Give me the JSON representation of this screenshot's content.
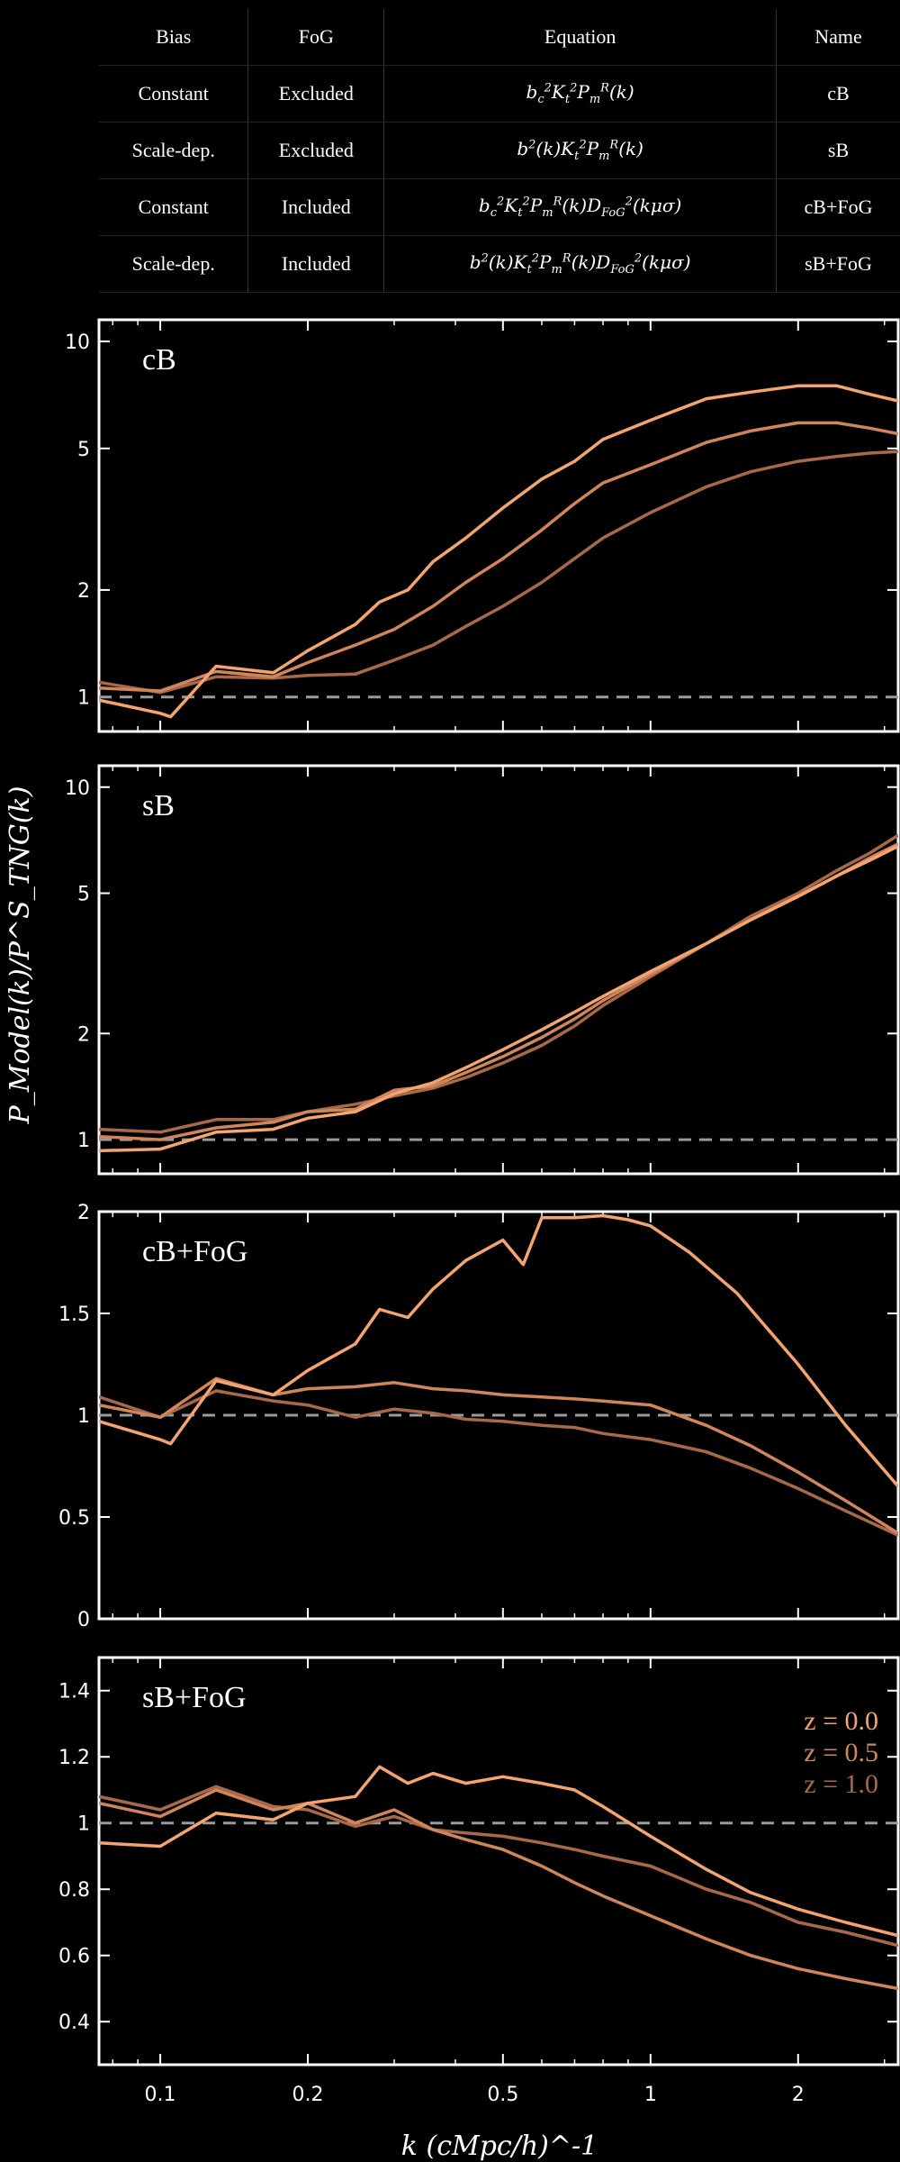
{
  "table": {
    "headers": [
      "Bias",
      "FoG",
      "Equation",
      "Name"
    ],
    "rows": [
      {
        "bias": "Constant",
        "fog": "Excluded",
        "eq_html": "b<sub>c</sub><sup>2</sup>K<sub>t</sub><sup>2</sup>P<sub>m</sub><sup>R</sup>(k)",
        "name": "cB"
      },
      {
        "bias": "Scale-dep.",
        "fog": "Excluded",
        "eq_html": "b<sup>2</sup>(k)K<sub>t</sub><sup>2</sup>P<sub>m</sub><sup>R</sup>(k)",
        "name": "sB"
      },
      {
        "bias": "Constant",
        "fog": "Included",
        "eq_html": "b<sub>c</sub><sup>2</sup>K<sub>t</sub><sup>2</sup>P<sub>m</sub><sup>R</sup>(k)D<sub>FoG</sub><sup>2</sup>(kμσ)",
        "name": "cB+FoG"
      },
      {
        "bias": "Scale-dep.",
        "fog": "Included",
        "eq_html": "b<sup>2</sup>(k)K<sub>t</sub><sup>2</sup>P<sub>m</sub><sup>R</sup>(k)D<sub>FoG</sub><sup>2</sup>(kμσ)",
        "name": "sB+FoG"
      }
    ]
  },
  "y_axis_title": "P_Model(k)/P^S_TNG(k)",
  "x_axis_title": "k (cMpc/h)^-1",
  "colors": {
    "z0.0": "#f4a46e",
    "z0.5": "#d0855b",
    "z1.0": "#a8694a",
    "ref": "#9a9a9a"
  },
  "chart_data": [
    {
      "type": "line",
      "panel_label": "cB",
      "yscale": "log",
      "xscale": "log",
      "xlim": [
        0.075,
        3.2
      ],
      "ylim": [
        0.8,
        11.5
      ],
      "xticks": [
        0.1,
        0.2,
        0.5,
        1,
        2
      ],
      "xticklabels": [
        "0.1",
        "0.2",
        "0.5",
        "1",
        "2"
      ],
      "yticks": [
        1,
        2,
        5,
        10
      ],
      "yticklabels": [
        "1",
        "2",
        "5",
        "10"
      ],
      "reference_line": 1.0,
      "series": [
        {
          "color": "#f4a46e",
          "x": [
            0.075,
            0.1,
            0.105,
            0.13,
            0.17,
            0.2,
            0.25,
            0.28,
            0.32,
            0.36,
            0.42,
            0.5,
            0.6,
            0.7,
            0.8,
            1.0,
            1.3,
            1.6,
            2.0,
            2.4,
            2.8,
            3.2
          ],
          "y": [
            0.98,
            0.9,
            0.88,
            1.22,
            1.17,
            1.35,
            1.6,
            1.85,
            2.0,
            2.4,
            2.8,
            3.4,
            4.1,
            4.6,
            5.3,
            6.0,
            6.9,
            7.2,
            7.5,
            7.5,
            7.1,
            6.8
          ]
        },
        {
          "color": "#d0855b",
          "x": [
            0.075,
            0.1,
            0.13,
            0.17,
            0.2,
            0.25,
            0.3,
            0.36,
            0.42,
            0.5,
            0.6,
            0.7,
            0.8,
            1.0,
            1.3,
            1.6,
            2.0,
            2.4,
            2.8,
            3.2
          ],
          "y": [
            1.06,
            1.04,
            1.18,
            1.14,
            1.25,
            1.4,
            1.55,
            1.8,
            2.1,
            2.45,
            2.95,
            3.5,
            4.0,
            4.5,
            5.2,
            5.6,
            5.9,
            5.9,
            5.7,
            5.5
          ]
        },
        {
          "color": "#a8694a",
          "x": [
            0.075,
            0.1,
            0.13,
            0.17,
            0.2,
            0.25,
            0.3,
            0.36,
            0.42,
            0.5,
            0.6,
            0.7,
            0.8,
            1.0,
            1.3,
            1.6,
            2.0,
            2.4,
            2.8,
            3.2
          ],
          "y": [
            1.1,
            1.03,
            1.14,
            1.13,
            1.15,
            1.16,
            1.27,
            1.4,
            1.58,
            1.8,
            2.1,
            2.45,
            2.8,
            3.3,
            3.9,
            4.3,
            4.6,
            4.75,
            4.85,
            4.9
          ]
        }
      ]
    },
    {
      "type": "line",
      "panel_label": "sB",
      "yscale": "log",
      "xscale": "log",
      "xlim": [
        0.075,
        3.2
      ],
      "ylim": [
        0.8,
        11.5
      ],
      "xticks": [
        0.1,
        0.2,
        0.5,
        1,
        2
      ],
      "xticklabels": [
        "0.1",
        "0.2",
        "0.5",
        "1",
        "2"
      ],
      "yticks": [
        1,
        2,
        5,
        10
      ],
      "yticklabels": [
        "1",
        "2",
        "5",
        "10"
      ],
      "reference_line": 1.0,
      "series": [
        {
          "color": "#f4a46e",
          "x": [
            0.075,
            0.1,
            0.13,
            0.17,
            0.2,
            0.25,
            0.3,
            0.36,
            0.42,
            0.5,
            0.6,
            0.7,
            0.8,
            1.0,
            1.3,
            1.6,
            2.0,
            2.4,
            2.8,
            3.2
          ],
          "y": [
            0.93,
            0.94,
            1.05,
            1.07,
            1.15,
            1.2,
            1.35,
            1.45,
            1.6,
            1.8,
            2.05,
            2.3,
            2.55,
            3.0,
            3.6,
            4.2,
            4.9,
            5.6,
            6.2,
            6.8
          ]
        },
        {
          "color": "#d0855b",
          "x": [
            0.075,
            0.1,
            0.13,
            0.17,
            0.2,
            0.25,
            0.3,
            0.36,
            0.42,
            0.5,
            0.6,
            0.7,
            0.8,
            1.0,
            1.3,
            1.6,
            2.0,
            2.4,
            2.8,
            3.2
          ],
          "y": [
            1.02,
            1.0,
            1.08,
            1.12,
            1.2,
            1.22,
            1.38,
            1.42,
            1.55,
            1.72,
            1.95,
            2.2,
            2.48,
            2.95,
            3.6,
            4.2,
            4.9,
            5.6,
            6.3,
            6.9
          ]
        },
        {
          "color": "#a8694a",
          "x": [
            0.075,
            0.1,
            0.13,
            0.17,
            0.2,
            0.25,
            0.3,
            0.36,
            0.42,
            0.5,
            0.6,
            0.7,
            0.8,
            1.0,
            1.3,
            1.6,
            2.0,
            2.4,
            2.8,
            3.2
          ],
          "y": [
            1.07,
            1.05,
            1.14,
            1.14,
            1.2,
            1.26,
            1.33,
            1.4,
            1.5,
            1.65,
            1.85,
            2.1,
            2.4,
            2.9,
            3.6,
            4.3,
            5.0,
            5.8,
            6.5,
            7.3
          ]
        }
      ]
    },
    {
      "type": "line",
      "panel_label": "cB+FoG",
      "yscale": "linear",
      "xscale": "log",
      "xlim": [
        0.075,
        3.2
      ],
      "ylim": [
        0,
        2
      ],
      "xticks": [
        0.1,
        0.2,
        0.5,
        1,
        2
      ],
      "xticklabels": [
        "0.1",
        "0.2",
        "0.5",
        "1",
        "2"
      ],
      "yticks": [
        0,
        0.5,
        1,
        1.5,
        2
      ],
      "yticklabels": [
        "0",
        "0.5",
        "1",
        "1.5",
        "2"
      ],
      "reference_line": 1.0,
      "series": [
        {
          "color": "#f4a46e",
          "x": [
            0.075,
            0.1,
            0.105,
            0.13,
            0.17,
            0.2,
            0.25,
            0.28,
            0.32,
            0.36,
            0.42,
            0.5,
            0.55,
            0.6,
            0.7,
            0.8,
            0.9,
            1.0,
            1.2,
            1.5,
            2.0,
            2.5,
            3.2
          ],
          "y": [
            0.97,
            0.88,
            0.86,
            1.17,
            1.1,
            1.22,
            1.35,
            1.52,
            1.48,
            1.62,
            1.76,
            1.86,
            1.74,
            1.97,
            1.97,
            1.98,
            1.96,
            1.93,
            1.8,
            1.6,
            1.25,
            0.95,
            0.65
          ]
        },
        {
          "color": "#d0855b",
          "x": [
            0.075,
            0.1,
            0.13,
            0.17,
            0.2,
            0.25,
            0.3,
            0.36,
            0.42,
            0.5,
            0.6,
            0.7,
            0.8,
            1.0,
            1.3,
            1.6,
            2.0,
            2.5,
            3.2
          ],
          "y": [
            1.05,
            0.99,
            1.18,
            1.1,
            1.13,
            1.14,
            1.16,
            1.13,
            1.12,
            1.1,
            1.09,
            1.08,
            1.07,
            1.05,
            0.95,
            0.85,
            0.72,
            0.58,
            0.42
          ]
        },
        {
          "color": "#a8694a",
          "x": [
            0.075,
            0.1,
            0.13,
            0.17,
            0.2,
            0.25,
            0.3,
            0.36,
            0.42,
            0.5,
            0.6,
            0.7,
            0.8,
            1.0,
            1.3,
            1.6,
            2.0,
            2.5,
            3.2
          ],
          "y": [
            1.09,
            0.99,
            1.12,
            1.07,
            1.05,
            0.99,
            1.03,
            1.01,
            0.98,
            0.97,
            0.95,
            0.94,
            0.91,
            0.88,
            0.82,
            0.74,
            0.64,
            0.53,
            0.41
          ]
        }
      ]
    },
    {
      "type": "line",
      "panel_label": "sB+FoG",
      "yscale": "linear",
      "xscale": "log",
      "xlim": [
        0.075,
        3.2
      ],
      "ylim": [
        0.27,
        1.5
      ],
      "xticks": [
        0.1,
        0.2,
        0.5,
        1,
        2
      ],
      "xticklabels": [
        "0.1",
        "0.2",
        "0.5",
        "1",
        "2"
      ],
      "yticks": [
        0.4,
        0.6,
        0.8,
        1,
        1.2,
        1.4
      ],
      "yticklabels": [
        "0.4",
        "0.6",
        "0.8",
        "1",
        "1.2",
        "1.4"
      ],
      "reference_line": 1.0,
      "legend": {
        "location": "upper right",
        "entries": [
          {
            "label": "z = 0.0",
            "color": "#f4a46e"
          },
          {
            "label": "z = 0.5",
            "color": "#d0855b"
          },
          {
            "label": "z = 1.0",
            "color": "#a8694a"
          }
        ]
      },
      "series": [
        {
          "color": "#f4a46e",
          "x": [
            0.075,
            0.1,
            0.13,
            0.17,
            0.2,
            0.25,
            0.28,
            0.32,
            0.36,
            0.42,
            0.5,
            0.6,
            0.7,
            0.8,
            1.0,
            1.3,
            1.6,
            2.0,
            2.5,
            3.2
          ],
          "y": [
            0.94,
            0.93,
            1.03,
            1.01,
            1.06,
            1.08,
            1.17,
            1.12,
            1.15,
            1.12,
            1.14,
            1.12,
            1.1,
            1.05,
            0.96,
            0.86,
            0.79,
            0.74,
            0.7,
            0.66
          ]
        },
        {
          "color": "#d0855b",
          "x": [
            0.075,
            0.1,
            0.13,
            0.17,
            0.2,
            0.25,
            0.3,
            0.36,
            0.42,
            0.5,
            0.6,
            0.7,
            0.8,
            1.0,
            1.3,
            1.6,
            2.0,
            2.5,
            3.2
          ],
          "y": [
            1.06,
            1.02,
            1.1,
            1.04,
            1.06,
            1.0,
            1.04,
            0.98,
            0.95,
            0.92,
            0.87,
            0.82,
            0.78,
            0.72,
            0.65,
            0.6,
            0.56,
            0.53,
            0.5
          ]
        },
        {
          "color": "#a8694a",
          "x": [
            0.075,
            0.1,
            0.13,
            0.17,
            0.2,
            0.25,
            0.3,
            0.36,
            0.42,
            0.5,
            0.6,
            0.7,
            0.8,
            1.0,
            1.3,
            1.6,
            2.0,
            2.5,
            3.2
          ],
          "y": [
            1.08,
            1.04,
            1.11,
            1.05,
            1.04,
            0.99,
            1.02,
            0.98,
            0.97,
            0.96,
            0.94,
            0.92,
            0.9,
            0.87,
            0.8,
            0.76,
            0.7,
            0.67,
            0.63
          ]
        }
      ]
    }
  ]
}
